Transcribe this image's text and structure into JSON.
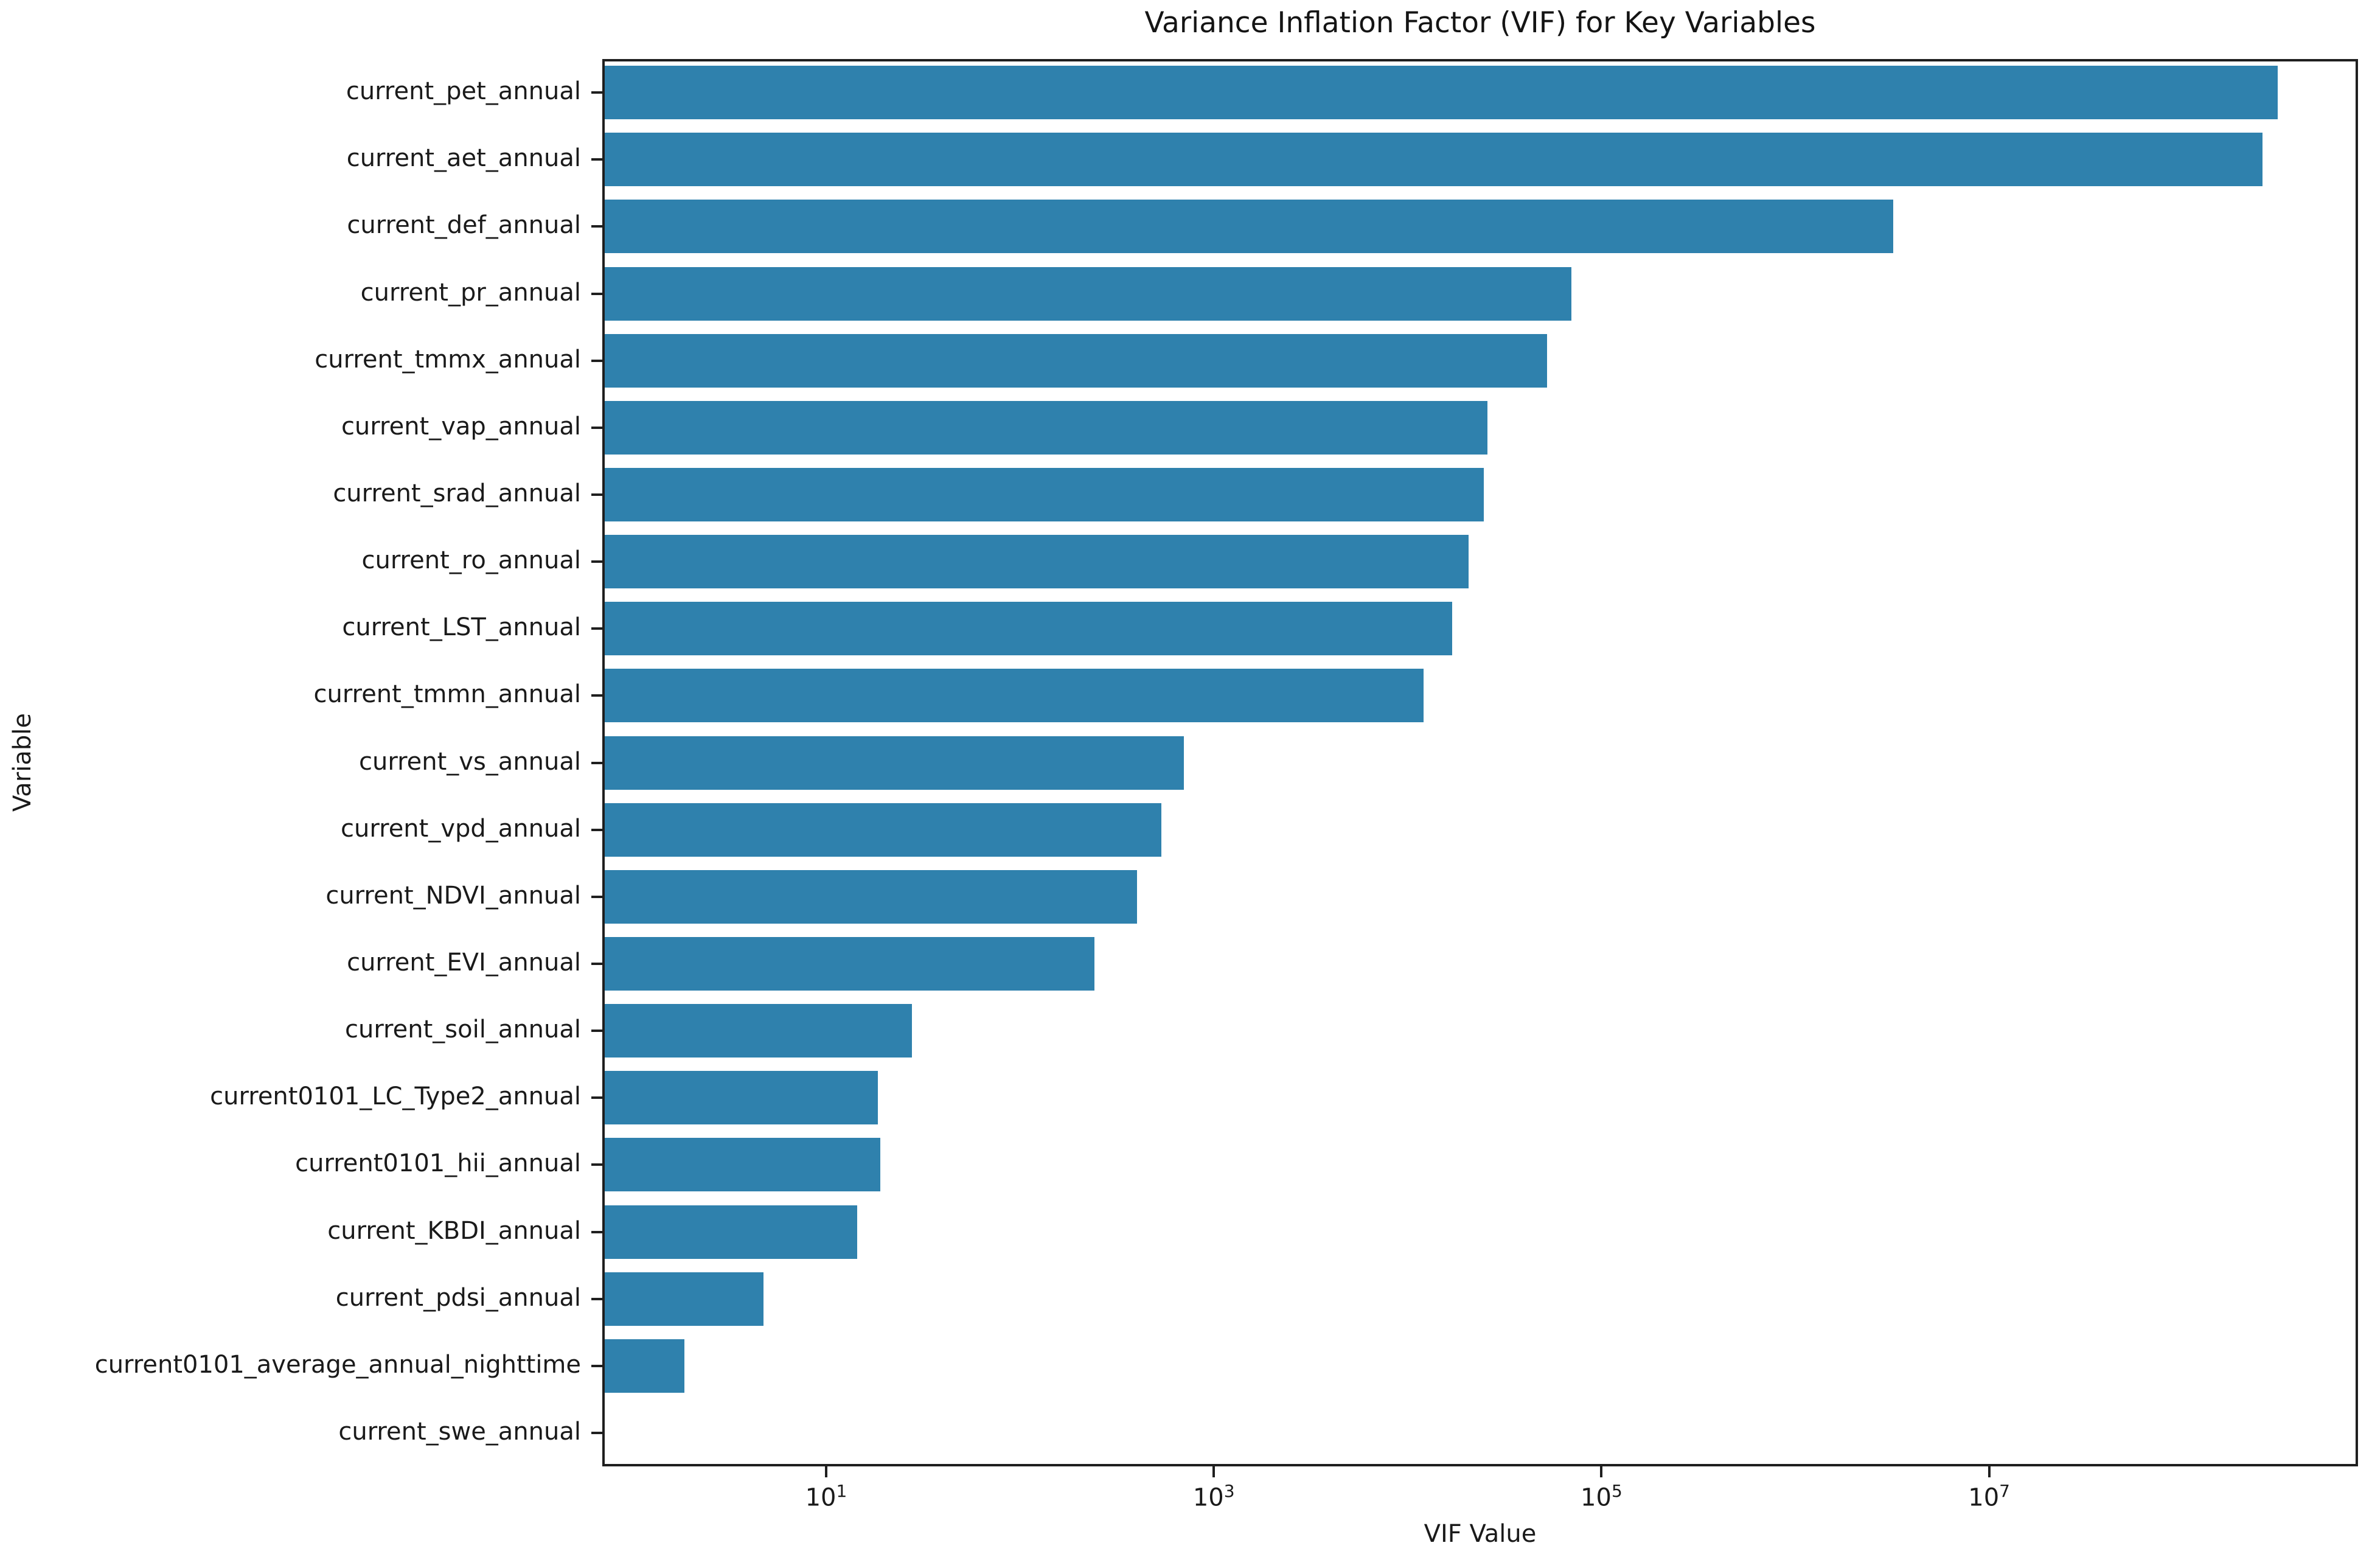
{
  "chart_data": {
    "type": "bar",
    "orientation": "horizontal",
    "title": "Variance Inflation Factor (VIF) for Key Variables",
    "xlabel": "VIF Value",
    "ylabel": "Variable",
    "xscale": "log",
    "xlim": [
      0.7,
      800000000
    ],
    "grid": false,
    "bar_color": "#2f81ad",
    "x_ticks": [
      {
        "value": 10,
        "base": "10",
        "exponent": "1"
      },
      {
        "value": 1000,
        "base": "10",
        "exponent": "3"
      },
      {
        "value": 100000,
        "base": "10",
        "exponent": "5"
      },
      {
        "value": 10000000,
        "base": "10",
        "exponent": "7"
      }
    ],
    "categories": [
      "current_pet_annual",
      "current_aet_annual",
      "current_def_annual",
      "current_pr_annual",
      "current_tmmx_annual",
      "current_vap_annual",
      "current_srad_annual",
      "current_ro_annual",
      "current_LST_annual",
      "current_tmmn_annual",
      "current_vs_annual",
      "current_vpd_annual",
      "current_NDVI_annual",
      "current_EVI_annual",
      "current_soil_annual",
      "current0101_LC_Type2_annual",
      "current0101_hii_annual",
      "current_KBDI_annual",
      "current_pdsi_annual",
      "current0101_average_annual_nighttime",
      "current_swe_annual"
    ],
    "values": [
      300000000,
      250000000,
      3100000,
      68000,
      51000,
      25000,
      24000,
      20000,
      16500,
      11700,
      680,
      520,
      390,
      235,
      27,
      18,
      18.5,
      14,
      4.6,
      1.8,
      null
    ]
  }
}
